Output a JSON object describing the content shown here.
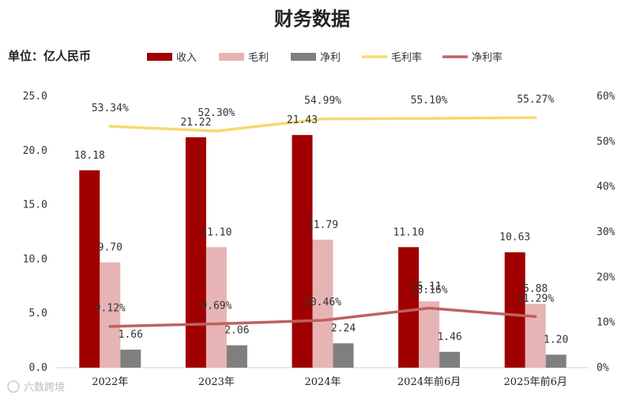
{
  "title": "财务数据",
  "unit_label": "单位：亿人民币",
  "watermark": "六数跨境",
  "colors": {
    "revenue": "#a00000",
    "gross_profit": "#e6b4b4",
    "net_profit": "#7f7f7f",
    "gross_margin": "#f7d96e",
    "net_margin": "#c06060"
  },
  "chart_data": {
    "type": "bar",
    "categories": [
      "2022年",
      "2023年",
      "2024年",
      "2024年前6月",
      "2025年前6月"
    ],
    "series": [
      {
        "name": "收入",
        "type": "bar",
        "axis": "left",
        "values": [
          18.18,
          21.22,
          21.43,
          11.1,
          10.63
        ],
        "labels": [
          "18.18",
          "21.22",
          "21.43",
          "11.10",
          "10.63"
        ]
      },
      {
        "name": "毛利",
        "type": "bar",
        "axis": "left",
        "values": [
          9.7,
          11.1,
          11.79,
          6.11,
          5.88
        ],
        "labels": [
          "9.70",
          "11.10",
          "11.79",
          "6.11",
          "5.88"
        ]
      },
      {
        "name": "净利",
        "type": "bar",
        "axis": "left",
        "values": [
          1.66,
          2.06,
          2.24,
          1.46,
          1.2
        ],
        "labels": [
          "1.66",
          "2.06",
          "2.24",
          "1.46",
          "1.20"
        ]
      },
      {
        "name": "毛利率",
        "type": "line",
        "axis": "right",
        "values": [
          53.34,
          52.3,
          54.99,
          55.1,
          55.27
        ],
        "labels": [
          "53.34%",
          "52.30%",
          "54.99%",
          "55.10%",
          "55.27%"
        ]
      },
      {
        "name": "净利率",
        "type": "line",
        "axis": "right",
        "values": [
          9.12,
          9.69,
          10.46,
          13.16,
          11.29
        ],
        "labels": [
          "9.12%",
          "9.69%",
          "10.46%",
          "13.16%",
          "11.29%"
        ]
      }
    ],
    "y_left": {
      "min": 0,
      "max": 25,
      "ticks": [
        "0.0",
        "5.0",
        "10.0",
        "15.0",
        "20.0",
        "25.0"
      ]
    },
    "y_right": {
      "min": 0,
      "max": 60,
      "ticks": [
        "0%",
        "10%",
        "20%",
        "30%",
        "40%",
        "50%",
        "60%"
      ]
    },
    "legend_position": "top",
    "grid": false
  }
}
